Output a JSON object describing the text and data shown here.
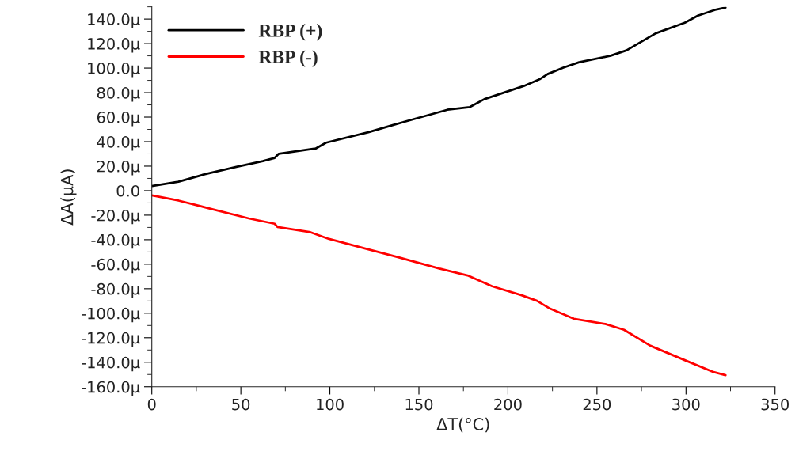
{
  "chart_data": {
    "type": "line",
    "xlabel": "ΔT(°C)",
    "ylabel": "ΔA(μA)",
    "xlim": [
      0,
      350
    ],
    "xticks": [
      0,
      50,
      100,
      150,
      200,
      250,
      300,
      350
    ],
    "ylim": [
      -160,
      150
    ],
    "yticks": [
      {
        "value": -160,
        "label": "-160.0μ"
      },
      {
        "value": -140,
        "label": "-140.0μ"
      },
      {
        "value": -120,
        "label": "-120.0μ"
      },
      {
        "value": -100,
        "label": "-100.0μ"
      },
      {
        "value": -80,
        "label": "-80.0μ"
      },
      {
        "value": -60,
        "label": "-60.0μ"
      },
      {
        "value": -40,
        "label": "-40.0μ"
      },
      {
        "value": -20,
        "label": "-20.0μ"
      },
      {
        "value": 0,
        "label": "0.0"
      },
      {
        "value": 20,
        "label": "20.0μ"
      },
      {
        "value": 40,
        "label": "40.0μ"
      },
      {
        "value": 60,
        "label": "60.0μ"
      },
      {
        "value": 80,
        "label": "80.0μ"
      },
      {
        "value": 100,
        "label": "100.0μ"
      },
      {
        "value": 120,
        "label": "120.0μ"
      },
      {
        "value": 140,
        "label": "140.0μ"
      }
    ],
    "grid": false,
    "legend": "top left",
    "marker": "none",
    "line_style": "solid",
    "series": [
      {
        "name": "RBP (+)",
        "color": "#000000",
        "x": [
          0,
          15,
          29.8,
          47.5,
          62.3,
          69,
          71.3,
          92,
          97.9,
          121.6,
          136.4,
          166,
          178.6,
          186.7,
          208.9,
          217.7,
          222.3,
          231.1,
          240,
          257.7,
          266.6,
          283,
          299.3,
          306.7,
          317,
          322.2
        ],
        "values": [
          3.7,
          7.3,
          13.4,
          19.4,
          24.1,
          26.7,
          30.1,
          34.4,
          39.2,
          47.7,
          54,
          66,
          68.2,
          74.6,
          85.4,
          90.8,
          95.1,
          100.4,
          104.8,
          110.1,
          114.5,
          128.4,
          137,
          142.8,
          147.8,
          149.3
        ]
      },
      {
        "name": "RBP (-)",
        "color": "#ff0000",
        "x": [
          0,
          15,
          32.6,
          54.9,
          69,
          70.6,
          89.1,
          99.5,
          121.6,
          136.4,
          161.5,
          177.8,
          191.1,
          207.4,
          216.3,
          223.7,
          237,
          254.7,
          265.2,
          280,
          299.3,
          315.5,
          322.2
        ],
        "values": [
          -3.9,
          -8.1,
          -14.6,
          -22.8,
          -27,
          -29.7,
          -33.9,
          -39.4,
          -47.9,
          -53.5,
          -63.6,
          -69.4,
          -78,
          -85.2,
          -89.9,
          -96.3,
          -104.5,
          -108.8,
          -113.5,
          -126.5,
          -138.3,
          -148,
          -150.5
        ]
      }
    ]
  }
}
